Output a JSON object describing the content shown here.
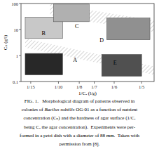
{
  "chart_data": {
    "type": "region",
    "xlabel": "1/Cₐ (l/g)",
    "ylabel": "Cₙ (g/l)",
    "log": "y",
    "xlim": [
      0.055,
      0.215
    ],
    "ylim": [
      0.1,
      100
    ],
    "xticks": [
      {
        "value": 0.0667,
        "label": "1/15"
      },
      {
        "value": 0.1,
        "label": "1/10"
      },
      {
        "value": 0.125,
        "label": "1/8"
      },
      {
        "value": 0.143,
        "label": "1/7"
      },
      {
        "value": 0.167,
        "label": "1/6"
      },
      {
        "value": 0.2,
        "label": "1/5"
      }
    ],
    "yticks": [
      0.1,
      1,
      10,
      100
    ],
    "bands": [
      {
        "x": [
          0.06,
          0.215,
          0.215,
          0.06
        ],
        "y": [
          4.5,
          0.38,
          0.18,
          2.0
        ]
      },
      {
        "x": [
          0.09,
          0.215,
          0.215,
          0.09
        ],
        "y": [
          100.0,
          22.0,
          8.0,
          35.0
        ]
      }
    ],
    "rects": [
      {
        "x_lo": 0.06,
        "x_hi": 0.105,
        "y_lo": 4.5,
        "y_hi": 30.0,
        "color": "#c8c8c8"
      },
      {
        "x_lo": 0.094,
        "x_hi": 0.137,
        "y_lo": 20.0,
        "y_hi": 95.0,
        "color": "#b0b0b0"
      },
      {
        "x_lo": 0.158,
        "x_hi": 0.21,
        "y_lo": 4.0,
        "y_hi": 28.0,
        "color": "#909090"
      },
      {
        "x_lo": 0.06,
        "x_hi": 0.105,
        "y_lo": 0.18,
        "y_hi": 1.2,
        "color": "#282828"
      },
      {
        "x_lo": 0.152,
        "x_hi": 0.2,
        "y_lo": 0.16,
        "y_hi": 1.1,
        "color": "#505050"
      }
    ],
    "labels": [
      {
        "text": "A",
        "x": 0.12,
        "y": 0.65
      },
      {
        "text": "B",
        "x": 0.082,
        "y": 7.0
      },
      {
        "text": "C",
        "x": 0.122,
        "y": 13.0
      },
      {
        "text": "D",
        "x": 0.152,
        "y": 3.8
      },
      {
        "text": "E",
        "x": 0.168,
        "y": 0.52
      }
    ],
    "caption": [
      "FIG. 1.   Morphological diagram of patterns observed in",
      [
        "colonies of ",
        "Bacilus subtilis",
        " OG-01 as a function of nutrient"
      ],
      "concentration (Cₙ) and the hardness of agar surface (1/Cₐ",
      "being Cₐ the agar concentration).  Experiments were per-",
      "formed in a petri dish with a diameter of 88 mm.  Taken with",
      "permission from [8]."
    ]
  }
}
